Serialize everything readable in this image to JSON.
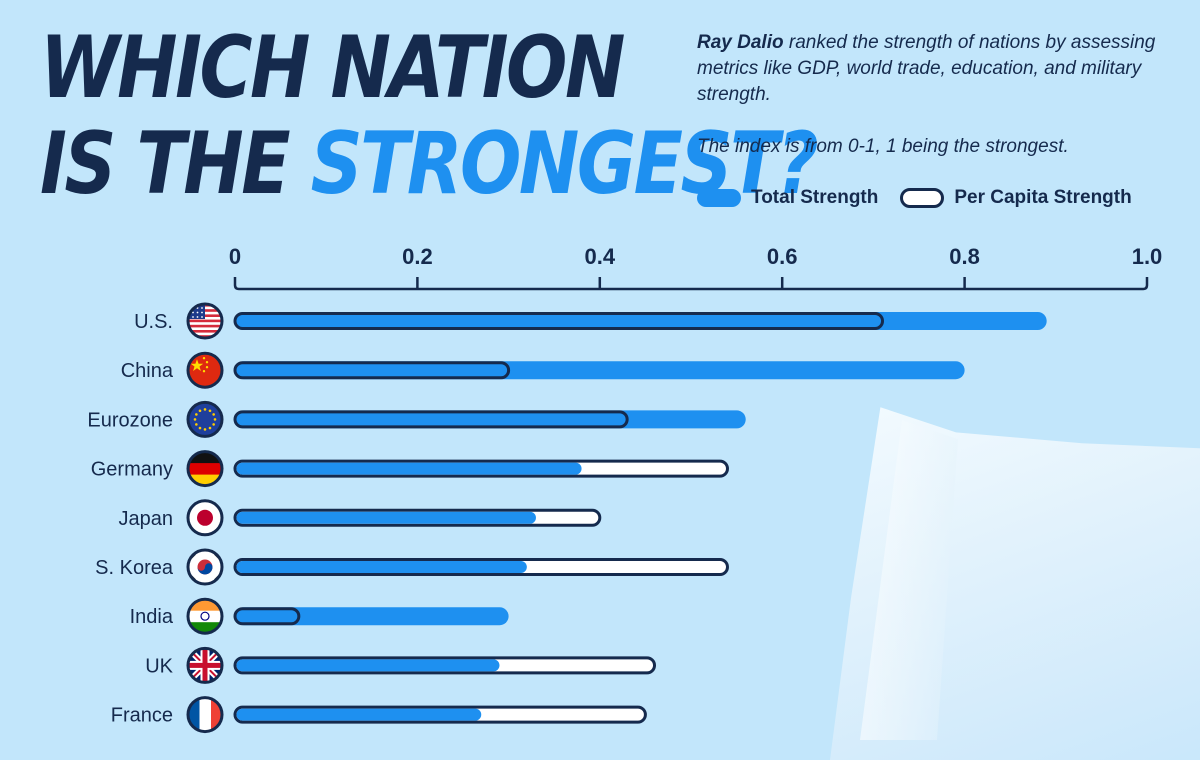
{
  "title": {
    "line1": "WHICH NATION",
    "line2_prefix": "IS THE ",
    "line2_accent": "STRONGEST?"
  },
  "intro": {
    "bold": "Ray Dalio",
    "text": " ranked the strength of nations by assessing metrics like GDP, world trade, education, and military strength."
  },
  "note": "The index is from 0-1, 1 being the strongest.",
  "colors": {
    "background": "#c2e6fb",
    "navy": "#152a4d",
    "accent": "#1e90f0",
    "outline_fill": "#ffffff"
  },
  "chart_data": {
    "type": "bar",
    "orientation": "horizontal",
    "categories": [
      "U.S.",
      "China",
      "Eurozone",
      "Germany",
      "Japan",
      "S. Korea",
      "India",
      "UK",
      "France"
    ],
    "flag_icons": [
      "us-flag-icon",
      "china-flag-icon",
      "eu-flag-icon",
      "germany-flag-icon",
      "japan-flag-icon",
      "south-korea-flag-icon",
      "india-flag-icon",
      "uk-flag-icon",
      "france-flag-icon"
    ],
    "series": [
      {
        "name": "Total Strength",
        "values": [
          0.89,
          0.8,
          0.56,
          0.38,
          0.33,
          0.32,
          0.3,
          0.29,
          0.27
        ]
      },
      {
        "name": "Per Capita Strength",
        "values": [
          0.71,
          0.3,
          0.43,
          0.54,
          0.4,
          0.54,
          0.07,
          0.46,
          0.45
        ]
      }
    ],
    "xlim": [
      0,
      1
    ],
    "ticks": [
      "0",
      "0.2",
      "0.4",
      "0.6",
      "0.8",
      "1.0"
    ],
    "axis_position": "top",
    "grid": false,
    "legend_position": "top-right"
  }
}
